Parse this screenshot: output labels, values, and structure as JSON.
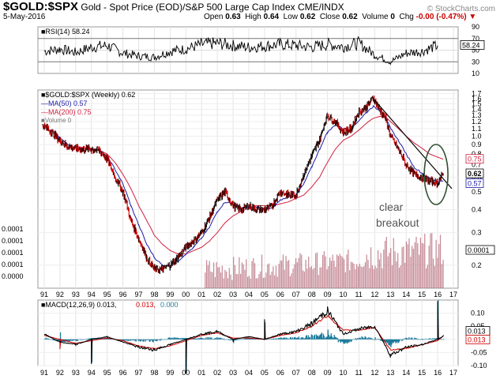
{
  "header": {
    "symbol": "$GOLD:$SPX",
    "description": "Gold - Spot Price (EOD)/S&P 500 Large Cap Index  CME/INDX",
    "brand": "© StockCharts.com",
    "date": "5-May-2016",
    "ohlc": [
      {
        "label": "Open",
        "value": "0.63"
      },
      {
        "label": "High",
        "value": "0.64"
      },
      {
        "label": "Low",
        "value": "0.62"
      },
      {
        "label": "Close",
        "value": "0.62"
      },
      {
        "label": "Volume",
        "value": "0"
      }
    ],
    "chg_label": "Chg",
    "chg_value": "-0.00 (-0.47%)"
  },
  "colors": {
    "price": "#000000",
    "ma50": "#1a1aa6",
    "ma200": "#d02040",
    "volume": "#b06070",
    "macd_hist": "#1f7a9a",
    "macd_signal": "#d00000"
  },
  "chart_data": [
    {
      "type": "line",
      "panel": "RSI",
      "legend": "RSI(14) 58.24",
      "last_value": "58.24",
      "ylim": [
        10,
        90
      ],
      "y_ticks": [
        "90",
        "70",
        "50",
        "30",
        "10"
      ],
      "reference_lines": [
        70,
        30
      ],
      "x": [
        1991,
        1992,
        1993,
        1994,
        1995,
        1996,
        1997,
        1998,
        1999,
        2000,
        2001,
        2002,
        2003,
        2004,
        2005,
        2006,
        2007,
        2008,
        2009,
        2010,
        2011,
        2012,
        2013,
        2014,
        2015,
        2016
      ],
      "values": [
        48,
        52,
        46,
        55,
        58,
        45,
        40,
        38,
        48,
        52,
        60,
        62,
        58,
        55,
        57,
        60,
        58,
        55,
        60,
        56,
        62,
        42,
        30,
        45,
        48,
        58
      ]
    },
    {
      "type": "line",
      "panel": "Price",
      "legend": "$GOLD:$SPX (Weekly) 0.62",
      "x_ticks": [
        "91",
        "92",
        "93",
        "94",
        "95",
        "96",
        "97",
        "98",
        "99",
        "00",
        "01",
        "02",
        "03",
        "04",
        "05",
        "06",
        "07",
        "08",
        "09",
        "10",
        "11",
        "12",
        "13",
        "14",
        "15",
        "16",
        "17"
      ],
      "y_ticks": [
        "1.7",
        "1.6",
        "1.5",
        "1.4",
        "1.3",
        "1.2",
        "1.1",
        "1.0",
        "0.9",
        "0.8",
        "0.7",
        "0.6",
        "0.5",
        "0.4",
        "0.3",
        "0.2"
      ],
      "left_ticks": [
        "0.0001",
        "0.0001",
        "0.0001",
        "0.0001",
        "0.0000"
      ],
      "badges": [
        {
          "text": "0.75",
          "series": "MA(200)"
        },
        {
          "text": "0.62",
          "series": "$GOLD:$SPX"
        },
        {
          "text": "0.57",
          "series": "MA(50)"
        },
        {
          "text": "0.0001",
          "series": "Volume"
        }
      ],
      "x": [
        1990.9,
        1991.5,
        1992.0,
        1992.5,
        1993.0,
        1993.5,
        1994.0,
        1994.5,
        1995.0,
        1995.5,
        1996.0,
        1996.5,
        1997.0,
        1997.5,
        1998.0,
        1998.5,
        1999.0,
        1999.5,
        2000.0,
        2000.5,
        2001.0,
        2001.5,
        2002.0,
        2002.5,
        2003.0,
        2003.5,
        2004.0,
        2004.5,
        2005.0,
        2005.5,
        2006.0,
        2006.5,
        2007.0,
        2007.5,
        2008.0,
        2008.5,
        2009.0,
        2009.5,
        2010.0,
        2010.5,
        2011.0,
        2011.5,
        2011.9,
        2012.3,
        2012.7,
        2013.0,
        2013.5,
        2014.0,
        2014.5,
        2015.0,
        2015.5,
        2016.0,
        2016.35
      ],
      "series": [
        {
          "name": "$GOLD:$SPX (Weekly)",
          "values": [
            1.15,
            1.05,
            0.95,
            0.88,
            0.86,
            0.85,
            0.85,
            0.84,
            0.75,
            0.6,
            0.5,
            0.35,
            0.28,
            0.22,
            0.19,
            0.19,
            0.2,
            0.22,
            0.25,
            0.27,
            0.3,
            0.36,
            0.45,
            0.5,
            0.42,
            0.4,
            0.42,
            0.4,
            0.4,
            0.42,
            0.5,
            0.48,
            0.48,
            0.62,
            0.78,
            0.95,
            1.3,
            1.2,
            1.05,
            1.1,
            1.35,
            1.45,
            1.62,
            1.4,
            1.25,
            1.0,
            0.85,
            0.7,
            0.62,
            0.6,
            0.57,
            0.56,
            0.62
          ]
        },
        {
          "name": "MA(50) 0.57",
          "values": [
            1.12,
            1.06,
            0.98,
            0.9,
            0.87,
            0.86,
            0.85,
            0.84,
            0.78,
            0.66,
            0.55,
            0.42,
            0.33,
            0.26,
            0.22,
            0.2,
            0.2,
            0.21,
            0.23,
            0.25,
            0.28,
            0.32,
            0.39,
            0.44,
            0.43,
            0.41,
            0.41,
            0.41,
            0.4,
            0.41,
            0.45,
            0.47,
            0.48,
            0.55,
            0.68,
            0.85,
            1.05,
            1.15,
            1.1,
            1.08,
            1.22,
            1.35,
            1.45,
            1.38,
            1.25,
            1.1,
            0.95,
            0.8,
            0.68,
            0.63,
            0.59,
            0.57,
            0.57
          ]
        },
        {
          "name": "MA(200) 0.75",
          "values": [
            null,
            null,
            null,
            null,
            0.88,
            0.87,
            0.86,
            0.84,
            0.8,
            0.72,
            0.62,
            0.52,
            0.42,
            0.35,
            0.29,
            0.26,
            0.24,
            0.23,
            0.23,
            0.24,
            0.25,
            0.27,
            0.3,
            0.34,
            0.37,
            0.39,
            0.41,
            0.42,
            0.42,
            0.42,
            0.43,
            0.44,
            0.46,
            0.48,
            0.53,
            0.6,
            0.72,
            0.85,
            0.95,
            1.0,
            1.08,
            1.18,
            1.25,
            1.28,
            1.27,
            1.2,
            1.1,
            1.0,
            0.92,
            0.86,
            0.8,
            0.77,
            0.75
          ]
        }
      ],
      "annotation": {
        "lines": [
          "clear",
          "breakout"
        ]
      },
      "trendline": {
        "from": {
          "x": 2011.85,
          "y": 1.62
        },
        "to": {
          "x": 2016.9,
          "y": 0.52
        }
      },
      "circle_center": {
        "x": 2015.9,
        "y": 0.62
      }
    },
    {
      "type": "bar",
      "panel": "Volume",
      "legend": "Volume 0",
      "note": "volume bars begin ~2001"
    },
    {
      "type": "line",
      "panel": "MACD",
      "legend_prefix": "MACD(12,26,9)",
      "legend_values": [
        "0.013",
        "0.013",
        "0.000"
      ],
      "ylim": [
        -0.1,
        0.15
      ],
      "y_ticks": [
        "0.10",
        "0.05",
        "0.00",
        "-0.05",
        "-0.10"
      ],
      "badges": [
        "0.013",
        "0.013"
      ],
      "x_ticks": [
        "91",
        "92",
        "93",
        "94",
        "95",
        "96",
        "97",
        "98",
        "99",
        "00",
        "01",
        "02",
        "03",
        "04",
        "05",
        "06",
        "07",
        "08",
        "09",
        "10",
        "11",
        "12",
        "13",
        "14",
        "15",
        "16",
        "17"
      ],
      "x": [
        1991,
        1992,
        1993,
        1994,
        1995,
        1996,
        1997,
        1998,
        1999,
        2000,
        2001,
        2002,
        2003,
        2004,
        2005,
        2006,
        2007,
        2008,
        2009,
        2010,
        2011,
        2012,
        2013,
        2014,
        2015,
        2016,
        2016.35
      ],
      "series": [
        {
          "name": "MACD",
          "values": [
            0.02,
            -0.01,
            -0.02,
            0.0,
            0.01,
            -0.01,
            -0.03,
            -0.04,
            -0.02,
            0.0,
            0.02,
            0.03,
            0.0,
            0.01,
            0.0,
            0.02,
            0.03,
            0.06,
            0.11,
            0.02,
            0.04,
            0.05,
            -0.06,
            -0.03,
            -0.02,
            0.0,
            0.013
          ]
        },
        {
          "name": "Signal",
          "values": [
            0.015,
            0.0,
            -0.015,
            -0.005,
            0.005,
            -0.005,
            -0.025,
            -0.035,
            -0.025,
            -0.005,
            0.015,
            0.025,
            0.005,
            0.005,
            0.0,
            0.015,
            0.025,
            0.05,
            0.09,
            0.035,
            0.035,
            0.045,
            -0.04,
            -0.035,
            -0.02,
            -0.005,
            0.013
          ]
        }
      ]
    }
  ]
}
